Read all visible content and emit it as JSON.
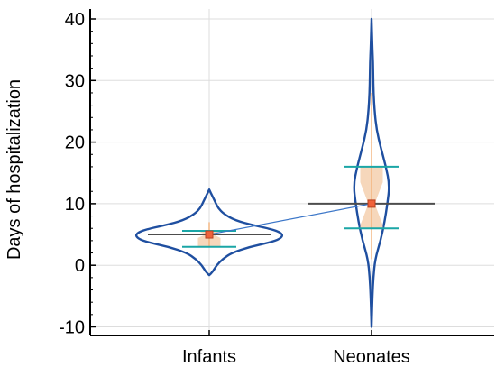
{
  "chart_data": {
    "type": "violin",
    "title": "",
    "xlabel": "",
    "ylabel": "Days of hospitalization",
    "ylim": [
      -11,
      40
    ],
    "yticks": [
      -10,
      0,
      10,
      20,
      30,
      40
    ],
    "ytick_labels": [
      "-10",
      "0",
      "10",
      "20",
      "30",
      "40"
    ],
    "grid": true,
    "legend": "none",
    "categories": [
      "Infants",
      "Neonates"
    ],
    "groups": [
      {
        "category": "Infants",
        "median": 5,
        "q1": 3,
        "q3": 5.6,
        "whisker_low": 3,
        "whisker_high": 7,
        "notch_low": 4.4,
        "notch_high": 5.6,
        "mean_line": 5,
        "mean_line_width": 0.7,
        "density": [
          [
            -1.6,
            0.0
          ],
          [
            -1.0,
            0.05
          ],
          [
            0.0,
            0.1
          ],
          [
            1.0,
            0.18
          ],
          [
            2.0,
            0.3
          ],
          [
            3.0,
            0.55
          ],
          [
            3.7,
            0.82
          ],
          [
            4.3,
            0.96
          ],
          [
            5.0,
            1.0
          ],
          [
            5.7,
            0.9
          ],
          [
            6.5,
            0.6
          ],
          [
            7.3,
            0.35
          ],
          [
            8.3,
            0.2
          ],
          [
            9.3,
            0.12
          ],
          [
            10.3,
            0.08
          ],
          [
            11.3,
            0.04
          ],
          [
            12.3,
            0.0
          ]
        ]
      },
      {
        "category": "Neonates",
        "median": 10,
        "q1": 6,
        "q3": 16,
        "whisker_low": 1,
        "whisker_high": 28,
        "notch_low": 6.5,
        "notch_high": 13.5,
        "mean_line": 10,
        "mean_line_width": 1.0,
        "density": [
          [
            -10.0,
            0.0
          ],
          [
            -8.0,
            0.02
          ],
          [
            -5.0,
            0.05
          ],
          [
            -2.0,
            0.1
          ],
          [
            1.0,
            0.2
          ],
          [
            4.0,
            0.5
          ],
          [
            7.0,
            0.72
          ],
          [
            10.0,
            0.88
          ],
          [
            13.0,
            1.0
          ],
          [
            16.0,
            0.8
          ],
          [
            19.0,
            0.52
          ],
          [
            22.0,
            0.28
          ],
          [
            25.0,
            0.17
          ],
          [
            28.0,
            0.11
          ],
          [
            31.0,
            0.09
          ],
          [
            33.0,
            0.08
          ],
          [
            35.0,
            0.05
          ],
          [
            37.0,
            0.03
          ],
          [
            39.0,
            0.01
          ],
          [
            40.0,
            0.0
          ]
        ]
      }
    ],
    "colors": {
      "violin_outline": "#1f4fa0",
      "iqr_fill": "#f6d3b4",
      "whisker": "#f2b27a",
      "quartile_lines": "#1aa6a6",
      "median_line": "#4d4d4d",
      "median_marker": "#f0623a",
      "connector": "#3b76c8",
      "grid": "#dddddd",
      "axis": "#000000"
    }
  }
}
